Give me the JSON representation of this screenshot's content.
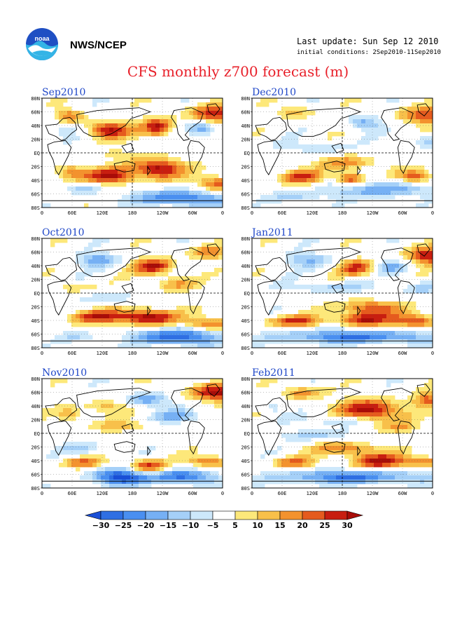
{
  "header": {
    "org": "NWS/NCEP",
    "last_update": "Last update: Sun Sep 12 2010",
    "initial_conditions": "initial conditions: 2Sep2010-11Sep2010",
    "title": "CFS monthly z700 forecast (m)",
    "logo_text": "noaa"
  },
  "axes": {
    "lat_labels": [
      "80N",
      "60N",
      "40N",
      "20N",
      "EQ",
      "20S",
      "40S",
      "60S",
      "80S"
    ],
    "lon_labels": [
      "0",
      "60E",
      "120E",
      "180",
      "120W",
      "60W",
      "0"
    ]
  },
  "panels": [
    {
      "title": "Sep2010"
    },
    {
      "title": "Dec2010"
    },
    {
      "title": "Oct2010"
    },
    {
      "title": "Jan2011"
    },
    {
      "title": "Nov2010"
    },
    {
      "title": "Feb2011"
    }
  ],
  "colorbar": {
    "labels": [
      "−30",
      "−25",
      "−20",
      "−15",
      "−10",
      "−5",
      "5",
      "10",
      "15",
      "20",
      "25",
      "30"
    ],
    "colors": [
      "#1a4fd6",
      "#2f6fe3",
      "#4a8ff0",
      "#76b0f4",
      "#a5d0f8",
      "#cde8fb",
      "#ffffff",
      "#fde87a",
      "#f8c04a",
      "#f3922e",
      "#e55b1e",
      "#c81e10",
      "#a80c08"
    ]
  }
}
